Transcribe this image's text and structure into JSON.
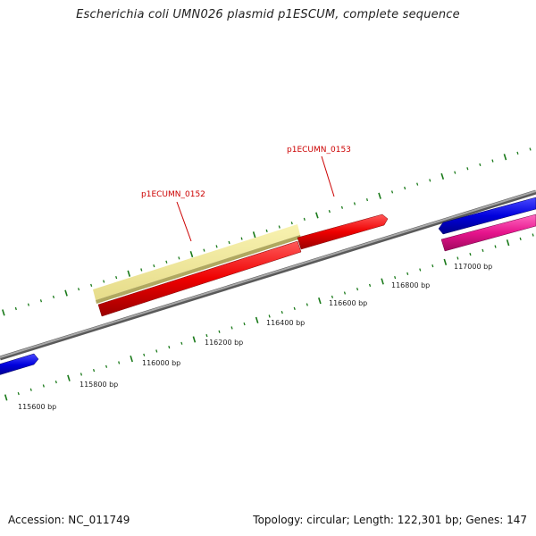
{
  "title": "Escherichia coli UMN026 plasmid p1ESCUM, complete sequence",
  "footer": {
    "accession": "Accession: NC_011749",
    "summary": "Topology: circular; Length: 122,301 bp; Genes: 147"
  },
  "scale_labels": [
    "115600 bp",
    "115800 bp",
    "116000 bp",
    "116200 bp",
    "116400 bp",
    "116600 bp",
    "116800 bp",
    "117000 bp"
  ],
  "gene_labels": [
    "p1ECUMN_0152",
    "p1ECUMN_0153"
  ],
  "colors": {
    "backbone": "#808080",
    "tick": "#1a7a1a",
    "gene_yellow": "#f0e68c",
    "gene_red": "#ee0000",
    "gene_blue": "#0000dd",
    "gene_pink": "#e6148c",
    "label": "#cc0000"
  }
}
